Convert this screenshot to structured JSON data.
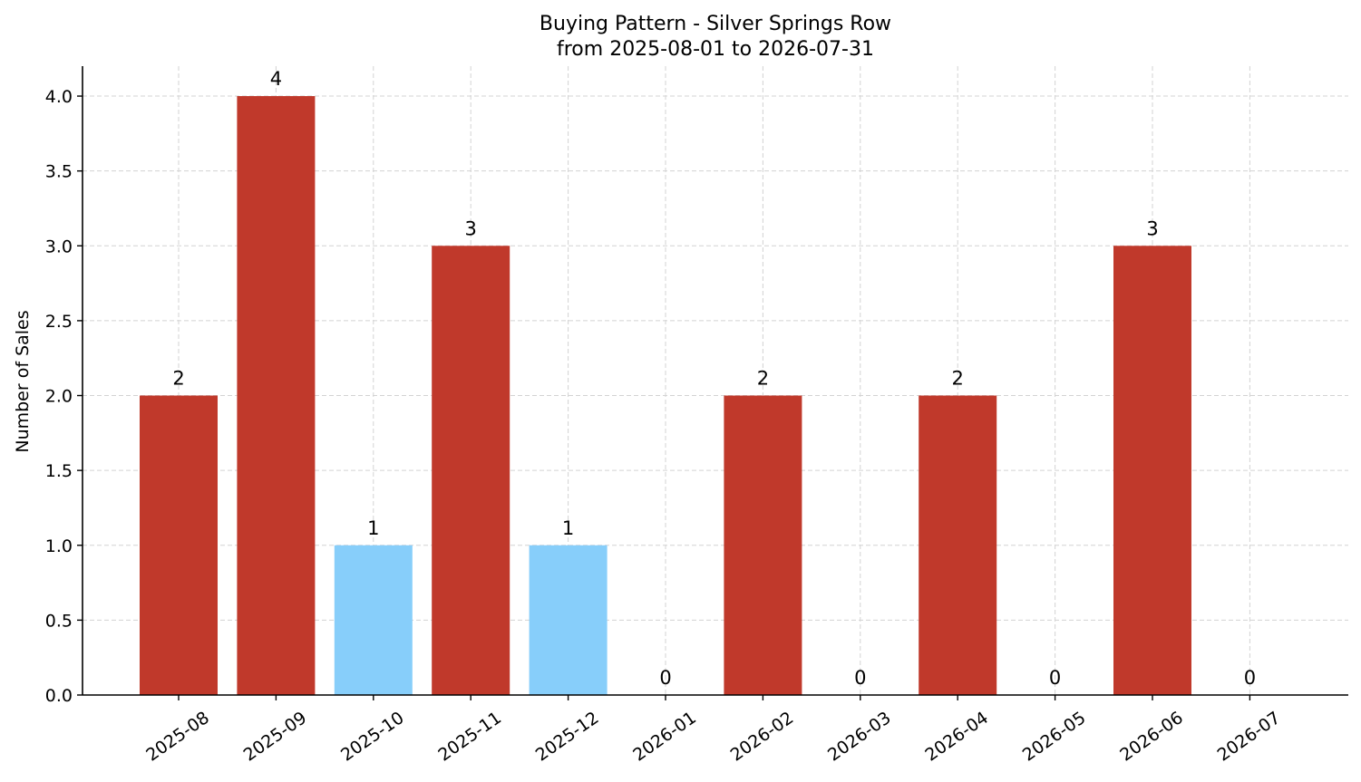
{
  "chart_data": {
    "type": "bar",
    "title": "Buying Pattern - Silver Springs Row",
    "subtitle": "from 2025-08-01 to 2026-07-31",
    "xlabel": "",
    "ylabel": "Number of Sales",
    "categories": [
      "2025-08",
      "2025-09",
      "2025-10",
      "2025-11",
      "2025-12",
      "2026-01",
      "2026-02",
      "2026-03",
      "2026-04",
      "2026-05",
      "2026-06",
      "2026-07"
    ],
    "values": [
      2,
      4,
      1,
      3,
      1,
      0,
      2,
      0,
      2,
      0,
      3,
      0
    ],
    "data_labels": [
      "2",
      "4",
      "1",
      "3",
      "1",
      "0",
      "2",
      "0",
      "2",
      "0",
      "3",
      "0"
    ],
    "bar_colors": [
      "#c0392b",
      "#c0392b",
      "#87cefa",
      "#c0392b",
      "#87cefa",
      "#c0392b",
      "#c0392b",
      "#c0392b",
      "#c0392b",
      "#c0392b",
      "#c0392b",
      "#c0392b"
    ],
    "ylim": [
      0,
      4.2
    ],
    "yticks": [
      0.0,
      0.5,
      1.0,
      1.5,
      2.0,
      2.5,
      3.0,
      3.5,
      4.0
    ],
    "ytick_labels": [
      "0.0",
      "0.5",
      "1.0",
      "1.5",
      "2.0",
      "2.5",
      "3.0",
      "3.5",
      "4.0"
    ],
    "grid": true,
    "colors": {
      "primary": "#c0392b",
      "highlight": "#87cefa"
    }
  }
}
